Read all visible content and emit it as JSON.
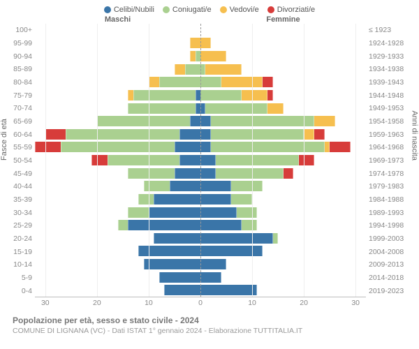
{
  "chart": {
    "type": "population-pyramid",
    "legend": [
      {
        "label": "Celibi/Nubili",
        "color": "#3a75a8"
      },
      {
        "label": "Coniugati/e",
        "color": "#aad090"
      },
      {
        "label": "Vedovi/e",
        "color": "#f6bf4f"
      },
      {
        "label": "Divorziati/e",
        "color": "#d73c3a"
      }
    ],
    "colors": {
      "single": "#3a75a8",
      "married": "#aad090",
      "widowed": "#f6bf4f",
      "divorced": "#d73c3a",
      "grid": "#eeeeee",
      "axis": "#888888",
      "bg": "#ffffff"
    },
    "sides": {
      "male": "Maschi",
      "female": "Femmine"
    },
    "y_left_title": "Fasce di età",
    "y_right_title": "Anni di nascita",
    "xmax": 32,
    "xticks": [
      30,
      20,
      10,
      0,
      10,
      20,
      30
    ],
    "age_groups": [
      "100+",
      "95-99",
      "90-94",
      "85-89",
      "80-84",
      "75-79",
      "70-74",
      "65-69",
      "60-64",
      "55-59",
      "50-54",
      "45-49",
      "40-44",
      "35-39",
      "30-34",
      "25-29",
      "20-24",
      "15-19",
      "10-14",
      "5-9",
      "0-4"
    ],
    "birth_years": [
      "≤ 1923",
      "1924-1928",
      "1929-1933",
      "1934-1938",
      "1939-1943",
      "1944-1948",
      "1949-1953",
      "1954-1958",
      "1959-1963",
      "1964-1968",
      "1969-1973",
      "1974-1978",
      "1979-1983",
      "1984-1988",
      "1989-1993",
      "1994-1998",
      "1999-2003",
      "2004-2008",
      "2009-2013",
      "2014-2018",
      "2019-2023"
    ],
    "male": [
      {
        "s": 0,
        "m": 0,
        "w": 0,
        "d": 0
      },
      {
        "s": 0,
        "m": 0,
        "w": 2,
        "d": 0
      },
      {
        "s": 0,
        "m": 1,
        "w": 1,
        "d": 0
      },
      {
        "s": 0,
        "m": 3,
        "w": 2,
        "d": 0
      },
      {
        "s": 0,
        "m": 8,
        "w": 2,
        "d": 0
      },
      {
        "s": 1,
        "m": 12,
        "w": 1,
        "d": 0
      },
      {
        "s": 1,
        "m": 13,
        "w": 0,
        "d": 0
      },
      {
        "s": 2,
        "m": 18,
        "w": 0,
        "d": 0
      },
      {
        "s": 4,
        "m": 22,
        "w": 0,
        "d": 4
      },
      {
        "s": 5,
        "m": 22,
        "w": 0,
        "d": 5
      },
      {
        "s": 4,
        "m": 14,
        "w": 0,
        "d": 3
      },
      {
        "s": 5,
        "m": 9,
        "w": 0,
        "d": 0
      },
      {
        "s": 6,
        "m": 5,
        "w": 0,
        "d": 0
      },
      {
        "s": 9,
        "m": 3,
        "w": 0,
        "d": 0
      },
      {
        "s": 10,
        "m": 4,
        "w": 0,
        "d": 0
      },
      {
        "s": 14,
        "m": 2,
        "w": 0,
        "d": 0
      },
      {
        "s": 9,
        "m": 0,
        "w": 0,
        "d": 0
      },
      {
        "s": 12,
        "m": 0,
        "w": 0,
        "d": 0
      },
      {
        "s": 11,
        "m": 0,
        "w": 0,
        "d": 0
      },
      {
        "s": 8,
        "m": 0,
        "w": 0,
        "d": 0
      },
      {
        "s": 7,
        "m": 0,
        "w": 0,
        "d": 0
      }
    ],
    "female": [
      {
        "s": 0,
        "m": 0,
        "w": 0,
        "d": 0
      },
      {
        "s": 0,
        "m": 0,
        "w": 2,
        "d": 0
      },
      {
        "s": 0,
        "m": 0,
        "w": 5,
        "d": 0
      },
      {
        "s": 0,
        "m": 1,
        "w": 7,
        "d": 0
      },
      {
        "s": 0,
        "m": 4,
        "w": 8,
        "d": 2
      },
      {
        "s": 0,
        "m": 8,
        "w": 5,
        "d": 1
      },
      {
        "s": 1,
        "m": 12,
        "w": 3,
        "d": 0
      },
      {
        "s": 2,
        "m": 20,
        "w": 4,
        "d": 0
      },
      {
        "s": 2,
        "m": 18,
        "w": 2,
        "d": 2
      },
      {
        "s": 2,
        "m": 22,
        "w": 1,
        "d": 4
      },
      {
        "s": 3,
        "m": 16,
        "w": 0,
        "d": 3
      },
      {
        "s": 3,
        "m": 13,
        "w": 0,
        "d": 2
      },
      {
        "s": 6,
        "m": 6,
        "w": 0,
        "d": 0
      },
      {
        "s": 6,
        "m": 4,
        "w": 0,
        "d": 0
      },
      {
        "s": 7,
        "m": 4,
        "w": 0,
        "d": 0
      },
      {
        "s": 8,
        "m": 3,
        "w": 0,
        "d": 0
      },
      {
        "s": 14,
        "m": 1,
        "w": 0,
        "d": 0
      },
      {
        "s": 12,
        "m": 0,
        "w": 0,
        "d": 0
      },
      {
        "s": 5,
        "m": 0,
        "w": 0,
        "d": 0
      },
      {
        "s": 4,
        "m": 0,
        "w": 0,
        "d": 0
      },
      {
        "s": 11,
        "m": 0,
        "w": 0,
        "d": 0
      }
    ],
    "footer": {
      "title": "Popolazione per età, sesso e stato civile - 2024",
      "subtitle": "COMUNE DI LIGNANA (VC) - Dati ISTAT 1° gennaio 2024 - Elaborazione TUTTITALIA.IT"
    },
    "fontsize": {
      "legend": 11,
      "labels": 10.5,
      "title": 12,
      "subtitle": 10.5
    },
    "bar_height_ratio": 0.8
  }
}
